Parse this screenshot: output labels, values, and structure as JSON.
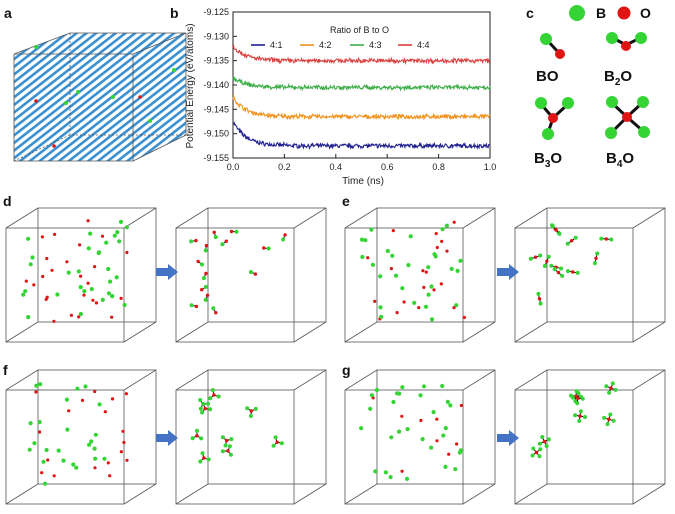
{
  "panels": {
    "a": "a",
    "b": "b",
    "c": "c",
    "d": "d",
    "e": "e",
    "f": "f",
    "g": "g"
  },
  "legend_key": {
    "b_label": "B",
    "o_label": "O",
    "b_color": "#35d435",
    "o_color": "#e11414"
  },
  "molecules": [
    {
      "id": "BO",
      "label": "BO",
      "sub": "",
      "n_b": 1
    },
    {
      "id": "B2O",
      "label": "B",
      "sub": "2",
      "tail": "O",
      "n_b": 2
    },
    {
      "id": "B3O",
      "label": "B",
      "sub": "3",
      "tail": "O",
      "n_b": 3
    },
    {
      "id": "B4O",
      "label": "B",
      "sub": "4",
      "tail": "O",
      "n_b": 4
    }
  ],
  "chart_data": {
    "type": "line",
    "title": "",
    "legend_title": "Ratio of B to O",
    "xlabel": "Time (ns)",
    "ylabel": "Potential Energy (eV/atoms)",
    "xlim": [
      0.0,
      1.0
    ],
    "ylim": [
      -9.155,
      -9.125
    ],
    "xticks": [
      "0.0",
      "0.2",
      "0.4",
      "0.6",
      "0.8",
      "1.0"
    ],
    "xtick_values": [
      0.0,
      0.2,
      0.4,
      0.6,
      0.8,
      1.0
    ],
    "yticks": [
      "-9.125",
      "-9.130",
      "-9.135",
      "-9.140",
      "-9.145",
      "-9.150",
      "-9.155"
    ],
    "ytick_values": [
      -9.125,
      -9.13,
      -9.135,
      -9.14,
      -9.145,
      -9.15,
      -9.155
    ],
    "series": [
      {
        "name": "4:1",
        "color": "#1f1f8f",
        "start": -9.1475,
        "plateau": -9.1525
      },
      {
        "name": "4:2",
        "color": "#f0921e",
        "start": -9.1425,
        "plateau": -9.1465
      },
      {
        "name": "4:3",
        "color": "#3fae49",
        "start": -9.1385,
        "plateau": -9.1405
      },
      {
        "name": "4:4",
        "color": "#d9403f",
        "start": -9.132,
        "plateau": -9.135
      }
    ]
  },
  "arrow_color": "#4472c4",
  "lattice_color": "#3a8fd0"
}
